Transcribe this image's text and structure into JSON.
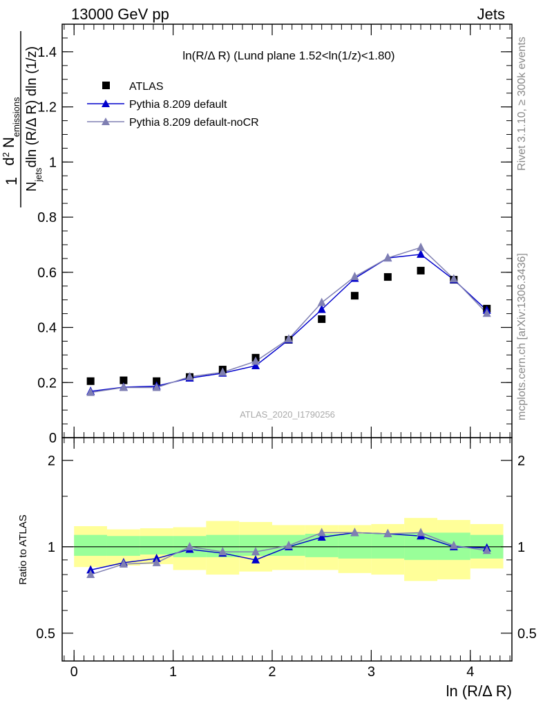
{
  "header": {
    "left": "13000 GeV pp",
    "right": "Jets"
  },
  "side_labels": {
    "rivet": "Rivet 3.1.10, ≥ 300k events",
    "mcplots": "mcplots.cern.ch [arXiv:1306.3436]"
  },
  "chart_data": [
    {
      "type": "scatter",
      "panel": "main",
      "title": "ln(R/Δ R) (Lund plane 1.52<ln(1/z)<1.80)",
      "watermark": "ATLAS_2020_I1790256",
      "ylabel_parts": {
        "one": "1",
        "den_n": "N",
        "den_sub": "jets",
        "den_rest": "dln (R/Δ R) dln (1/z)",
        "num_d": "d",
        "num_sup": "2",
        "num_n": " N",
        "num_sub": "emissions"
      },
      "xlim": [
        -0.12,
        4.42
      ],
      "ylim": [
        0,
        1.5
      ],
      "yticks": [
        0,
        0.2,
        0.4,
        0.6,
        0.8,
        1,
        1.2,
        1.4
      ],
      "ytick_labels": [
        "0",
        "0.2",
        "0.4",
        "0.6",
        "0.8",
        "1",
        "1.2",
        "1.4"
      ],
      "legend_position": "top-left",
      "x": [
        0.167,
        0.5,
        0.833,
        1.167,
        1.5,
        1.833,
        2.167,
        2.5,
        2.833,
        3.167,
        3.5,
        3.833,
        4.167
      ],
      "series": [
        {
          "name": "ATLAS",
          "style": "data",
          "color": "#000000",
          "values": [
            0.205,
            0.208,
            0.205,
            0.22,
            0.247,
            0.29,
            0.355,
            0.43,
            0.515,
            0.583,
            0.606,
            0.573,
            0.468
          ]
        },
        {
          "name": "Pythia 8.209 default",
          "style": "mc",
          "color": "#0000cc",
          "values": [
            0.168,
            0.183,
            0.187,
            0.216,
            0.234,
            0.261,
            0.355,
            0.465,
            0.578,
            0.652,
            0.665,
            0.573,
            0.462
          ]
        },
        {
          "name": "Pythia 8.209 default-noCR",
          "style": "mc",
          "color": "#7f7fb2",
          "values": [
            0.164,
            0.182,
            0.182,
            0.221,
            0.237,
            0.277,
            0.358,
            0.49,
            0.584,
            0.652,
            0.69,
            0.576,
            0.451
          ]
        }
      ]
    },
    {
      "type": "scatter",
      "panel": "ratio",
      "ylabel": "Ratio to ATLAS",
      "xlabel": "ln (R/Δ R)",
      "xlim": [
        -0.12,
        4.42
      ],
      "ylim": [
        0.4,
        2.4
      ],
      "yscale": "log",
      "reference_line": 1,
      "xticks": [
        0,
        1,
        2,
        3,
        4
      ],
      "xtick_labels": [
        "0",
        "1",
        "2",
        "3",
        "4"
      ],
      "yticks": [
        0.5,
        1,
        2
      ],
      "ytick_labels": [
        "0.5",
        "1",
        "2"
      ],
      "band_edges": [
        0,
        0.333,
        0.667,
        1.0,
        1.333,
        1.667,
        2.0,
        2.333,
        2.667,
        3.0,
        3.333,
        3.667,
        4.0,
        4.333
      ],
      "band_inner": {
        "color": "#99ff99",
        "lower": [
          0.93,
          0.93,
          0.94,
          0.92,
          0.92,
          0.93,
          0.93,
          0.92,
          0.91,
          0.91,
          0.9,
          0.9,
          0.91
        ],
        "upper": [
          1.1,
          1.09,
          1.09,
          1.09,
          1.1,
          1.1,
          1.1,
          1.11,
          1.11,
          1.11,
          1.12,
          1.12,
          1.1
        ]
      },
      "band_outer": {
        "color": "#ffff99",
        "lower": [
          0.85,
          0.86,
          0.87,
          0.83,
          0.8,
          0.82,
          0.83,
          0.83,
          0.81,
          0.8,
          0.76,
          0.77,
          0.84
        ],
        "upper": [
          1.18,
          1.15,
          1.16,
          1.17,
          1.23,
          1.22,
          1.19,
          1.19,
          1.19,
          1.2,
          1.26,
          1.24,
          1.2
        ]
      },
      "x": [
        0.167,
        0.5,
        0.833,
        1.167,
        1.5,
        1.833,
        2.167,
        2.5,
        2.833,
        3.167,
        3.5,
        3.833,
        4.167
      ],
      "series": [
        {
          "name": "Pythia 8.209 default",
          "color": "#0000cc",
          "values": [
            0.83,
            0.88,
            0.91,
            0.98,
            0.95,
            0.9,
            1.0,
            1.08,
            1.12,
            1.11,
            1.09,
            1.0,
            0.99
          ],
          "errors": [
            0.02,
            0.02,
            0.02,
            0.02,
            0.015,
            0.015,
            0.015,
            0.015,
            0.015,
            0.012,
            0.012,
            0.012,
            0.012
          ]
        },
        {
          "name": "Pythia 8.209 default-noCR",
          "color": "#7f7fb2",
          "values": [
            0.8,
            0.87,
            0.88,
            1.0,
            0.96,
            0.96,
            1.01,
            1.12,
            1.12,
            1.11,
            1.12,
            1.01,
            0.97
          ],
          "errors": [
            0.02,
            0.02,
            0.02,
            0.02,
            0.015,
            0.015,
            0.015,
            0.015,
            0.015,
            0.012,
            0.012,
            0.012,
            0.012
          ]
        }
      ]
    }
  ]
}
